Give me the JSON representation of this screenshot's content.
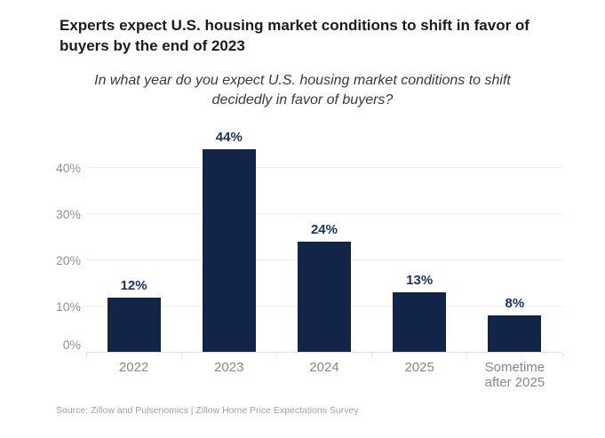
{
  "header": {
    "title": "Experts expect U.S. housing market conditions to shift in favor of\nbuyers by the end of 2023",
    "subtitle": "In what year do you expect U.S. housing market conditions to shift\ndecidedly in favor of buyers?"
  },
  "chart_data": {
    "type": "bar",
    "categories": [
      "2022",
      "2023",
      "2024",
      "2025",
      "Sometime\nafter 2025"
    ],
    "values": [
      12,
      44,
      24,
      13,
      8
    ],
    "value_labels": [
      "12%",
      "44%",
      "24%",
      "13%",
      "8%"
    ],
    "y_ticks": [
      0,
      10,
      20,
      30,
      40
    ],
    "y_tick_labels": [
      "0%",
      "10%",
      "20%",
      "30%",
      "40%"
    ],
    "ylim": [
      0,
      49
    ],
    "xlabel": "",
    "ylabel": "",
    "grid": "horizontal",
    "legend": "none",
    "colors": {
      "bar": "#122549",
      "value_label": "#1B3468",
      "gridline": "#EFEFF1",
      "axis_line": "#DCDDE6",
      "y_tick_label": "#909297",
      "x_tick_label": "#85878C",
      "title": "#1B1B1C",
      "subtitle": "#39393B",
      "source": "#9DA0A4"
    }
  },
  "footer": {
    "source": "Source: Zillow and Pulsenomics | Zillow Home Price Expectations Survey"
  }
}
